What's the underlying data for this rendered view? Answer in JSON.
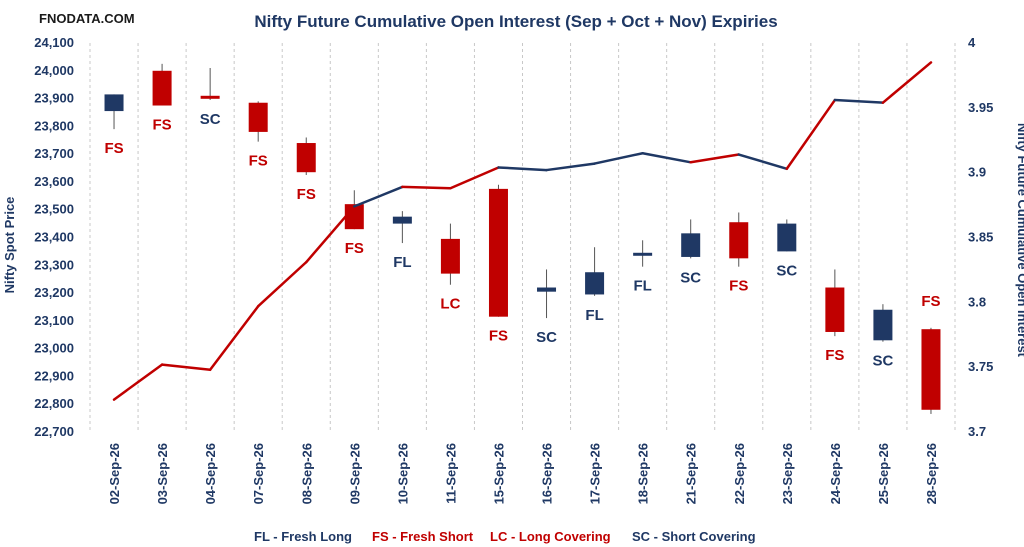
{
  "brand": "FNODATA.COM",
  "chart_data": {
    "type": "candlestick+line",
    "title": "Nifty Future Cumulative Open Interest (Sep + Oct + Nov) Expiries",
    "ylabel": "Nifty Spot Price",
    "y2label": "Nifty Future Cumulative Open Interest",
    "ylim": [
      22700,
      24100
    ],
    "y2lim": [
      3.7,
      4.0
    ],
    "yticks": [
      "22,700",
      "22,800",
      "22,900",
      "23,000",
      "23,100",
      "23,200",
      "23,300",
      "23,400",
      "23,500",
      "23,600",
      "23,700",
      "23,800",
      "23,900",
      "24,000",
      "24,100"
    ],
    "y2ticks": [
      "3.7",
      "3.75",
      "3.8",
      "3.85",
      "3.9",
      "3.95",
      "4"
    ],
    "categories": [
      "02-Sep-26",
      "03-Sep-26",
      "04-Sep-26",
      "07-Sep-26",
      "08-Sep-26",
      "09-Sep-26",
      "10-Sep-26",
      "11-Sep-26",
      "15-Sep-26",
      "16-Sep-26",
      "17-Sep-26",
      "18-Sep-26",
      "21-Sep-26",
      "22-Sep-26",
      "23-Sep-26",
      "24-Sep-26",
      "25-Sep-26",
      "28-Sep-26"
    ],
    "candles": [
      {
        "open": 23855,
        "close": 23915,
        "high": 23915,
        "low": 23790
      },
      {
        "open": 24000,
        "close": 23875,
        "high": 24025,
        "low": 23875
      },
      {
        "open": 23910,
        "close": 23900,
        "high": 24010,
        "low": 23895
      },
      {
        "open": 23885,
        "close": 23780,
        "high": 23890,
        "low": 23745
      },
      {
        "open": 23740,
        "close": 23635,
        "high": 23760,
        "low": 23625
      },
      {
        "open": 23520,
        "close": 23430,
        "high": 23570,
        "low": 23430
      },
      {
        "open": 23450,
        "close": 23475,
        "high": 23495,
        "low": 23380
      },
      {
        "open": 23395,
        "close": 23270,
        "high": 23450,
        "low": 23230
      },
      {
        "open": 23575,
        "close": 23115,
        "high": 23590,
        "low": 23115
      },
      {
        "open": 23205,
        "close": 23220,
        "high": 23285,
        "low": 23110
      },
      {
        "open": 23195,
        "close": 23275,
        "high": 23365,
        "low": 23190
      },
      {
        "open": 23335,
        "close": 23345,
        "high": 23390,
        "low": 23295
      },
      {
        "open": 23330,
        "close": 23415,
        "high": 23465,
        "low": 23325
      },
      {
        "open": 23455,
        "close": 23325,
        "high": 23490,
        "low": 23295
      },
      {
        "open": 23350,
        "close": 23450,
        "high": 23465,
        "low": 23350
      },
      {
        "open": 23220,
        "close": 23060,
        "high": 23285,
        "low": 23045
      },
      {
        "open": 23030,
        "close": 23140,
        "high": 23160,
        "low": 23025
      },
      {
        "open": 23070,
        "close": 22780,
        "high": 23075,
        "low": 22765
      }
    ],
    "open_interest": [
      3.725,
      3.752,
      3.748,
      3.797,
      3.831,
      3.874,
      3.889,
      3.888,
      3.904,
      3.902,
      3.907,
      3.915,
      3.908,
      3.914,
      3.903,
      3.956,
      3.954,
      3.985
    ],
    "tags": [
      "FS",
      "FS",
      "SC",
      "FS",
      "FS",
      "FS",
      "FL",
      "LC",
      "FS",
      "SC",
      "FL",
      "FL",
      "SC",
      "FS",
      "SC",
      "FS",
      "SC",
      "FS"
    ],
    "tag_colors": {
      "FS": "#c00000",
      "LC": "#c00000",
      "FL": "#1f3864",
      "SC": "#1f3864"
    },
    "candle_colors": {
      "up": "#1f3864",
      "down": "#c00000"
    },
    "legend": [
      {
        "code": "FL",
        "text": "FL - Fresh Long",
        "color": "#1f3864"
      },
      {
        "code": "FS",
        "text": "FS - Fresh Short",
        "color": "#c00000"
      },
      {
        "code": "LC",
        "text": "LC - Long Covering",
        "color": "#c00000"
      },
      {
        "code": "SC",
        "text": "SC - Short Covering",
        "color": "#1f3864"
      }
    ],
    "grid": "vertical-dashed",
    "legend_position": "bottom"
  }
}
